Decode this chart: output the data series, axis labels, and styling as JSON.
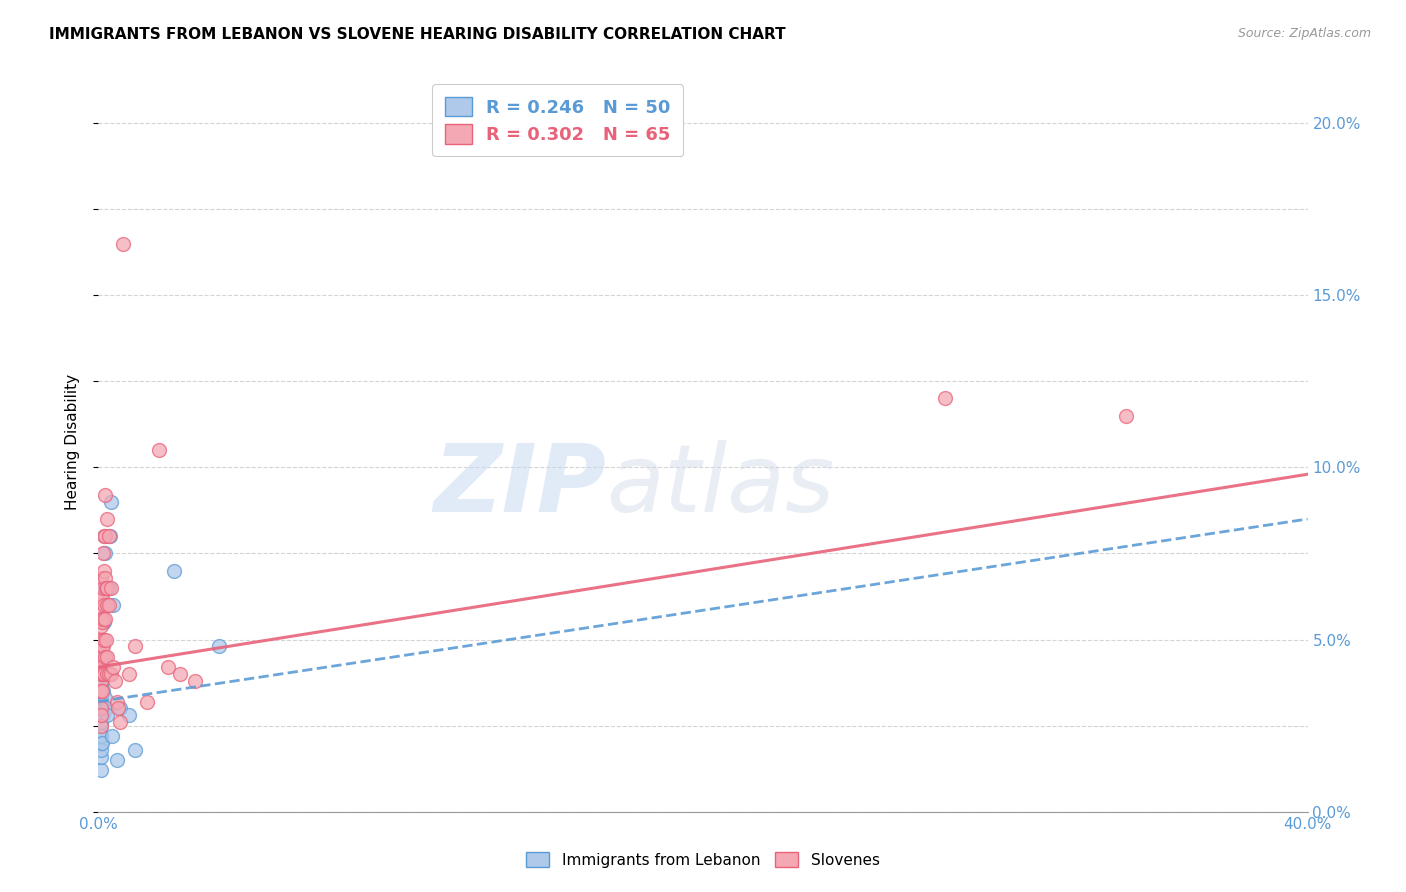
{
  "title": "IMMIGRANTS FROM LEBANON VS SLOVENE HEARING DISABILITY CORRELATION CHART",
  "source": "Source: ZipAtlas.com",
  "ylabel": "Hearing Disability",
  "ylabel_right_ticks": [
    "0.0%",
    "5.0%",
    "10.0%",
    "15.0%",
    "20.0%"
  ],
  "ylabel_right_vals": [
    0.0,
    0.05,
    0.1,
    0.15,
    0.2
  ],
  "xmin": 0.0,
  "xmax": 0.4,
  "ymin": 0.0,
  "ymax": 0.215,
  "legend_entries": [
    {
      "label": "R = 0.246   N = 50",
      "color": "#5b9bd5"
    },
    {
      "label": "R = 0.302   N = 65",
      "color": "#e8637a"
    }
  ],
  "blue_scatter": [
    [
      0.0008,
      0.012
    ],
    [
      0.0008,
      0.016
    ],
    [
      0.0008,
      0.02
    ],
    [
      0.0008,
      0.022
    ],
    [
      0.0008,
      0.025
    ],
    [
      0.0008,
      0.028
    ],
    [
      0.0008,
      0.03
    ],
    [
      0.0008,
      0.033
    ],
    [
      0.0008,
      0.036
    ],
    [
      0.0008,
      0.038
    ],
    [
      0.0008,
      0.04
    ],
    [
      0.0008,
      0.042
    ],
    [
      0.001,
      0.018
    ],
    [
      0.001,
      0.022
    ],
    [
      0.001,
      0.026
    ],
    [
      0.001,
      0.03
    ],
    [
      0.001,
      0.033
    ],
    [
      0.001,
      0.038
    ],
    [
      0.001,
      0.042
    ],
    [
      0.001,
      0.046
    ],
    [
      0.0012,
      0.02
    ],
    [
      0.0012,
      0.03
    ],
    [
      0.0012,
      0.038
    ],
    [
      0.0012,
      0.045
    ],
    [
      0.0015,
      0.028
    ],
    [
      0.0015,
      0.035
    ],
    [
      0.0015,
      0.042
    ],
    [
      0.0015,
      0.055
    ],
    [
      0.0018,
      0.03
    ],
    [
      0.0018,
      0.04
    ],
    [
      0.0018,
      0.055
    ],
    [
      0.0018,
      0.065
    ],
    [
      0.0022,
      0.033
    ],
    [
      0.0022,
      0.045
    ],
    [
      0.0022,
      0.06
    ],
    [
      0.0022,
      0.075
    ],
    [
      0.0025,
      0.03
    ],
    [
      0.0028,
      0.06
    ],
    [
      0.003,
      0.028
    ],
    [
      0.0035,
      0.065
    ],
    [
      0.0038,
      0.08
    ],
    [
      0.004,
      0.09
    ],
    [
      0.0045,
      0.022
    ],
    [
      0.0048,
      0.06
    ],
    [
      0.006,
      0.015
    ],
    [
      0.007,
      0.03
    ],
    [
      0.01,
      0.028
    ],
    [
      0.012,
      0.018
    ],
    [
      0.025,
      0.07
    ],
    [
      0.04,
      0.048
    ]
  ],
  "pink_scatter": [
    [
      0.0008,
      0.025
    ],
    [
      0.0008,
      0.03
    ],
    [
      0.0008,
      0.035
    ],
    [
      0.0008,
      0.038
    ],
    [
      0.0008,
      0.042
    ],
    [
      0.0008,
      0.046
    ],
    [
      0.0008,
      0.05
    ],
    [
      0.0008,
      0.054
    ],
    [
      0.0008,
      0.058
    ],
    [
      0.0008,
      0.062
    ],
    [
      0.001,
      0.028
    ],
    [
      0.001,
      0.035
    ],
    [
      0.001,
      0.04
    ],
    [
      0.001,
      0.045
    ],
    [
      0.001,
      0.05
    ],
    [
      0.001,
      0.056
    ],
    [
      0.001,
      0.062
    ],
    [
      0.001,
      0.068
    ],
    [
      0.0012,
      0.035
    ],
    [
      0.0012,
      0.042
    ],
    [
      0.0012,
      0.048
    ],
    [
      0.0012,
      0.055
    ],
    [
      0.0012,
      0.062
    ],
    [
      0.0015,
      0.04
    ],
    [
      0.0015,
      0.048
    ],
    [
      0.0015,
      0.056
    ],
    [
      0.0015,
      0.065
    ],
    [
      0.0015,
      0.075
    ],
    [
      0.0018,
      0.04
    ],
    [
      0.0018,
      0.05
    ],
    [
      0.0018,
      0.06
    ],
    [
      0.0018,
      0.07
    ],
    [
      0.0018,
      0.08
    ],
    [
      0.0022,
      0.045
    ],
    [
      0.0022,
      0.056
    ],
    [
      0.0022,
      0.068
    ],
    [
      0.0022,
      0.08
    ],
    [
      0.0022,
      0.092
    ],
    [
      0.0025,
      0.05
    ],
    [
      0.0025,
      0.065
    ],
    [
      0.0028,
      0.04
    ],
    [
      0.0028,
      0.06
    ],
    [
      0.003,
      0.045
    ],
    [
      0.003,
      0.065
    ],
    [
      0.003,
      0.085
    ],
    [
      0.0035,
      0.04
    ],
    [
      0.0035,
      0.06
    ],
    [
      0.0035,
      0.08
    ],
    [
      0.004,
      0.04
    ],
    [
      0.004,
      0.065
    ],
    [
      0.0048,
      0.042
    ],
    [
      0.0055,
      0.038
    ],
    [
      0.006,
      0.032
    ],
    [
      0.0065,
      0.03
    ],
    [
      0.007,
      0.026
    ],
    [
      0.008,
      0.165
    ],
    [
      0.01,
      0.04
    ],
    [
      0.012,
      0.048
    ],
    [
      0.016,
      0.032
    ],
    [
      0.02,
      0.105
    ],
    [
      0.023,
      0.042
    ],
    [
      0.027,
      0.04
    ],
    [
      0.032,
      0.038
    ],
    [
      0.28,
      0.12
    ],
    [
      0.34,
      0.115
    ]
  ],
  "blue_line": {
    "x_start": 0.0,
    "y_start": 0.032,
    "x_end": 0.4,
    "y_end": 0.085
  },
  "pink_line": {
    "x_start": 0.0,
    "y_start": 0.042,
    "x_end": 0.4,
    "y_end": 0.098
  },
  "scatter_size": 100,
  "blue_color": "#5b9bd5",
  "blue_fill": "#aec9ea",
  "pink_color": "#e8637a",
  "pink_fill": "#f4a8b4",
  "title_fontsize": 11,
  "source_fontsize": 9,
  "axis_label_color": "#5b9bd5",
  "watermark_zip": "ZIP",
  "watermark_atlas": "atlas",
  "grid_color": "#d0d0d0",
  "background_color": "#ffffff"
}
